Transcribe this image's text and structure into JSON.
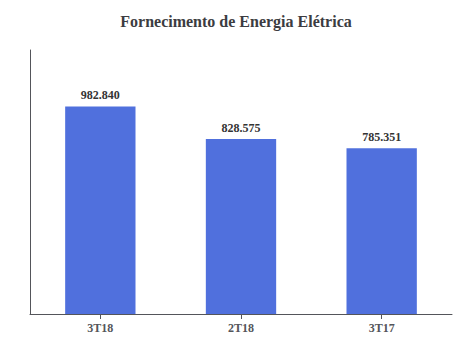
{
  "chart_data": {
    "type": "bar",
    "title": "Fornecimento de Energia Elétrica",
    "categories": [
      "3T18",
      "2T18",
      "3T17"
    ],
    "values": [
      982.84,
      828.575,
      785.351
    ],
    "value_labels": [
      "982.840",
      "828.575",
      "785.351"
    ],
    "data_labels": true,
    "ylim": [
      0,
      1250
    ],
    "tick_labels": "x",
    "grid": false
  }
}
